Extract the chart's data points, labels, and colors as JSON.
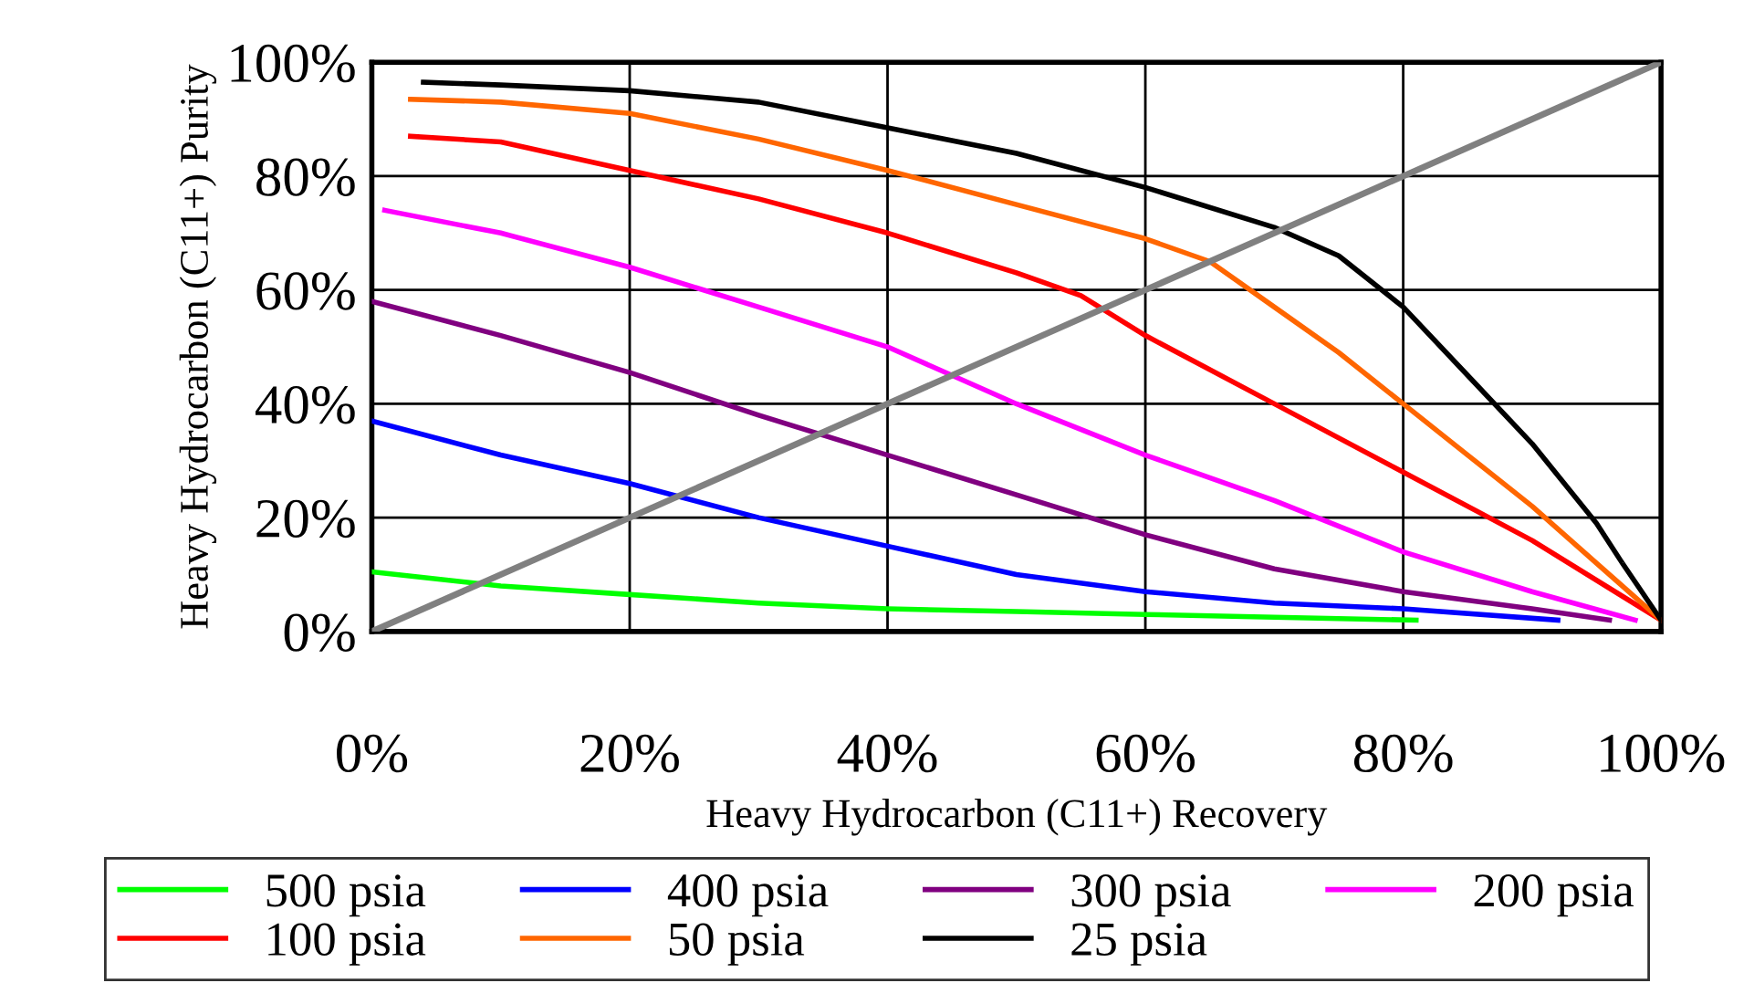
{
  "chart_data": {
    "type": "line",
    "xlabel": "Heavy Hydrocarbon (C11+) Recovery",
    "ylabel": "Heavy Hydrocarbon (C11+) Purity",
    "xlim": [
      0,
      100
    ],
    "ylim": [
      0,
      100
    ],
    "xticks": [
      {
        "value": 0,
        "label": "0%"
      },
      {
        "value": 20,
        "label": "20%"
      },
      {
        "value": 40,
        "label": "40%"
      },
      {
        "value": 60,
        "label": "60%"
      },
      {
        "value": 80,
        "label": "80%"
      },
      {
        "value": 100,
        "label": "100%"
      }
    ],
    "yticks": [
      {
        "value": 0,
        "label": "0%"
      },
      {
        "value": 20,
        "label": "20%"
      },
      {
        "value": 40,
        "label": "40%"
      },
      {
        "value": 60,
        "label": "60%"
      },
      {
        "value": 80,
        "label": "80%"
      },
      {
        "value": 100,
        "label": "100%"
      }
    ],
    "grid": true,
    "legend": "bottom",
    "marker": "none",
    "line_style": "solid",
    "series": [
      {
        "name": "500 psia",
        "color": "#00ff00",
        "x": [
          0,
          10,
          20,
          30,
          40,
          50,
          60,
          70,
          81
        ],
        "values": [
          10.5,
          8,
          6.5,
          5,
          4,
          3.5,
          3,
          2.5,
          2
        ]
      },
      {
        "name": "400 psia",
        "color": "#0000ff",
        "x": [
          0,
          10,
          20,
          30,
          40,
          50,
          60,
          70,
          80,
          92
        ],
        "values": [
          37,
          31,
          26,
          20,
          15,
          10,
          7,
          5,
          4,
          2
        ]
      },
      {
        "name": "300 psia",
        "color": "#800080",
        "x": [
          0,
          10,
          20,
          30,
          40,
          50,
          60,
          70,
          80,
          90,
          96
        ],
        "values": [
          58,
          52,
          45.5,
          38,
          31,
          24,
          17,
          11,
          7,
          4,
          2
        ]
      },
      {
        "name": "200 psia",
        "color": "#ff00ff",
        "x": [
          1,
          10,
          20,
          30,
          40,
          45,
          50,
          60,
          70,
          80,
          90,
          98
        ],
        "values": [
          74,
          70,
          64,
          57,
          50,
          45,
          40,
          31,
          23,
          14,
          7,
          2
        ]
      },
      {
        "name": "100 psia",
        "color": "#ff0000",
        "x": [
          3,
          10,
          20,
          30,
          40,
          50,
          55,
          60,
          70,
          80,
          90,
          100
        ],
        "values": [
          87,
          86,
          81,
          76,
          70,
          63,
          59,
          52,
          40,
          28,
          16,
          2
        ]
      },
      {
        "name": "50 psia",
        "color": "#ff6600",
        "x": [
          3,
          10,
          20,
          30,
          40,
          50,
          60,
          65,
          70,
          75,
          80,
          85,
          90,
          95,
          100
        ],
        "values": [
          93.5,
          93,
          91,
          86.5,
          81,
          75,
          69,
          65,
          57,
          49,
          40,
          31,
          22,
          12,
          2
        ]
      },
      {
        "name": "25 psia",
        "color": "#000000",
        "x": [
          4,
          10,
          20,
          30,
          40,
          50,
          60,
          70,
          75,
          80,
          85,
          90,
          95,
          97,
          100
        ],
        "values": [
          96.5,
          96,
          95,
          93,
          88.5,
          84,
          78,
          71,
          66,
          57,
          45,
          33,
          19,
          12,
          2
        ]
      },
      {
        "color": "#808080",
        "x": [
          0,
          100
        ],
        "values": [
          0,
          100
        ]
      }
    ]
  }
}
